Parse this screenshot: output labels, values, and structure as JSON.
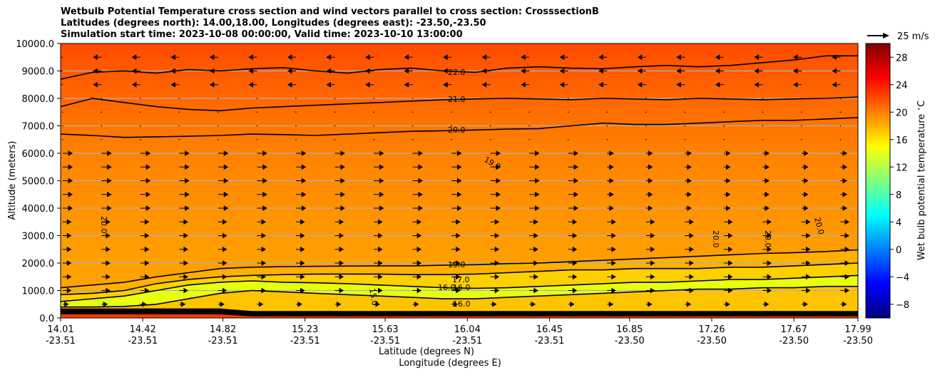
{
  "chart_data": {
    "type": "heatmap",
    "title_lines": [
      "Wetbulb Potential Temperature cross section and wind vectors parallel to cross section: CrosssectionB",
      "Latitudes (degrees north): 14.00,18.00, Longitudes (degrees east): -23.50,-23.50",
      "Simulation start time: 2023-10-08 00:00:00, Valid time: 2023-10-10 13:00:00"
    ],
    "ylabel": "Altitude (meters)",
    "xlabel_lines": [
      "Latitude (degrees N)",
      "Longitude (degrees E)"
    ],
    "ylim": [
      0,
      10000
    ],
    "yticks": [
      {
        "value": 0,
        "label": "0.0"
      },
      {
        "value": 1000,
        "label": "1000.0"
      },
      {
        "value": 2000,
        "label": "2000.0"
      },
      {
        "value": 3000,
        "label": "3000.0"
      },
      {
        "value": 4000,
        "label": "4000.0"
      },
      {
        "value": 5000,
        "label": "5000.0"
      },
      {
        "value": 6000,
        "label": "6000.0"
      },
      {
        "value": 7000,
        "label": "7000.0"
      },
      {
        "value": 8000,
        "label": "8000.0"
      },
      {
        "value": 9000,
        "label": "9000.0"
      },
      {
        "value": 10000,
        "label": "10000.0"
      }
    ],
    "xlim": [
      14.01,
      17.99
    ],
    "xticks": [
      {
        "lat": 14.01,
        "lat_label": "14.01",
        "lon_label": "-23.51"
      },
      {
        "lat": 14.42,
        "lat_label": "14.42",
        "lon_label": "-23.51"
      },
      {
        "lat": 14.82,
        "lat_label": "14.82",
        "lon_label": "-23.51"
      },
      {
        "lat": 15.23,
        "lat_label": "15.23",
        "lon_label": "-23.51"
      },
      {
        "lat": 15.63,
        "lat_label": "15.63",
        "lon_label": "-23.51"
      },
      {
        "lat": 16.04,
        "lat_label": "16.04",
        "lon_label": "-23.51"
      },
      {
        "lat": 16.45,
        "lat_label": "16.45",
        "lon_label": "-23.51"
      },
      {
        "lat": 16.85,
        "lat_label": "16.85",
        "lon_label": "-23.50"
      },
      {
        "lat": 17.26,
        "lat_label": "17.26",
        "lon_label": "-23.50"
      },
      {
        "lat": 17.67,
        "lat_label": "17.67",
        "lon_label": "-23.50"
      },
      {
        "lat": 17.99,
        "lat_label": "17.99",
        "lon_label": "-23.50"
      }
    ],
    "colorbar": {
      "label": "Wet bulb potential temperature $^\\circ$C",
      "range": [
        -10,
        30
      ],
      "ticks": [
        -8,
        -4,
        0,
        4,
        8,
        12,
        16,
        20,
        24,
        28
      ],
      "tick_labels": [
        "−8",
        "−4",
        "0",
        "4",
        "8",
        "12",
        "16",
        "20",
        "24",
        "28"
      ],
      "colormap": "jet"
    },
    "quiver_key": {
      "label": "25 m/s",
      "speed": 25
    },
    "contour_levels": [
      {
        "value": 22,
        "label": "22.0",
        "alt_m": [
          8700,
          8950,
          9000,
          8920,
          9050,
          9000,
          9080,
          9120,
          9000,
          8920,
          9050,
          9100,
          9000,
          8950,
          9100,
          9150,
          9100,
          9080,
          9150,
          9200,
          9150,
          9200,
          9300,
          9400,
          9550,
          9550
        ]
      },
      {
        "value": 21,
        "label": "21.0",
        "alt_m": [
          7700,
          8000,
          7850,
          7700,
          7600,
          7550,
          7650,
          7700,
          7750,
          7800,
          7850,
          7900,
          7950,
          7980,
          8000,
          7980,
          7950,
          8000,
          7980,
          7950,
          8000,
          7980,
          7950,
          7980,
          8000,
          8050
        ]
      },
      {
        "value": 20,
        "label": "20.0",
        "alt_m": [
          6700,
          6650,
          6580,
          6600,
          6620,
          6650,
          6700,
          6680,
          6650,
          6700,
          6750,
          6800,
          6820,
          6850,
          6880,
          6900,
          7000,
          7100,
          7050,
          7050,
          7100,
          7150,
          7200,
          7200,
          7250,
          7300
        ]
      },
      {
        "value": 19,
        "label": "19.0",
        "alt_m": [
          1100,
          1200,
          1300,
          1500,
          1650,
          1800,
          1850,
          1870,
          1880,
          1890,
          1900,
          1900,
          1920,
          1940,
          1980,
          2000,
          2050,
          2100,
          2150,
          2200,
          2250,
          2300,
          2350,
          2380,
          2420,
          2480
        ]
      },
      {
        "value": 17,
        "label": "17.0",
        "alt_m": [
          850,
          900,
          1000,
          1250,
          1400,
          1500,
          1550,
          1580,
          1600,
          1600,
          1600,
          1580,
          1580,
          1600,
          1650,
          1700,
          1750,
          1750,
          1800,
          1800,
          1800,
          1850,
          1850,
          1900,
          1950,
          2000
        ]
      },
      {
        "value": 16,
        "label": "16.0",
        "alt_m": [
          600,
          700,
          800,
          1000,
          1200,
          1300,
          1350,
          1300,
          1280,
          1250,
          1200,
          1150,
          1100,
          1080,
          1100,
          1150,
          1200,
          1250,
          1300,
          1300,
          1350,
          1400,
          1400,
          1450,
          1500,
          1550
        ]
      },
      {
        "value": 15,
        "label": "15.0",
        "alt_m": [
          400,
          400,
          420,
          500,
          700,
          900,
          1000,
          950,
          900,
          850,
          800,
          750,
          700,
          700,
          750,
          800,
          850,
          900,
          950,
          1000,
          1050,
          1050,
          1100,
          1100,
          1150,
          1150
        ]
      }
    ],
    "extra_contour_labels": [
      "20.0",
      "20.0",
      "20.0",
      "20.0",
      "15.0",
      "16.0",
      "16.0",
      "16.0"
    ],
    "wind_columns": 21,
    "wind_rows": 21
  }
}
